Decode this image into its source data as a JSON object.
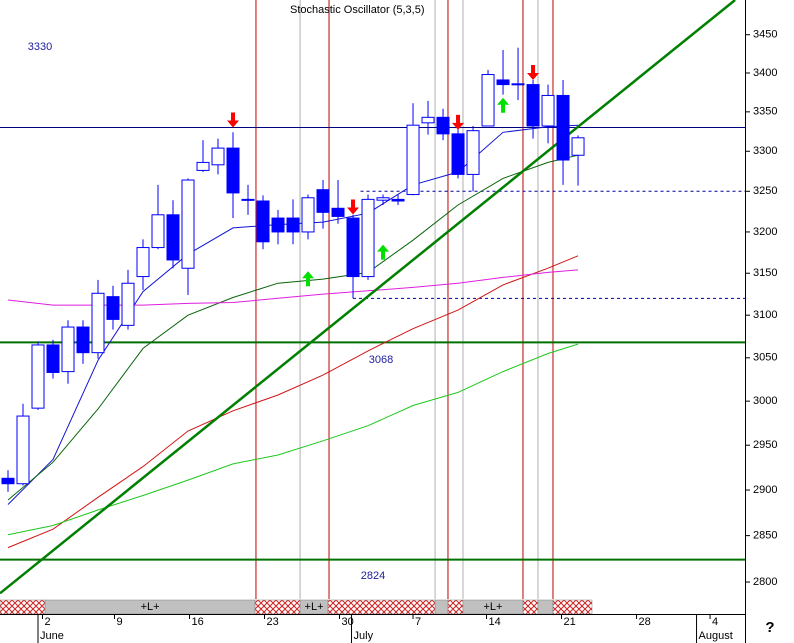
{
  "chart_data": {
    "type": "candlestick",
    "title": "Stochastic Oscillator (5,3,5)",
    "log_scale": true,
    "x": [
      0,
      1,
      2,
      3,
      4,
      5,
      6,
      7,
      8,
      9,
      10,
      11,
      12,
      13,
      14,
      15,
      16,
      17,
      18,
      19,
      20,
      21,
      22,
      23,
      24,
      25,
      26,
      27,
      28,
      29,
      30,
      31,
      32,
      33,
      34,
      35,
      36,
      37,
      38
    ],
    "open": [
      2913,
      2907,
      2992,
      3065,
      3034,
      3086,
      3056,
      3122,
      3088,
      3146,
      3181,
      3221,
      3156,
      3276,
      3283,
      3304,
      3240,
      3238,
      3217,
      3217,
      3200,
      3252,
      3229,
      3217,
      3146,
      3239,
      3240,
      3246,
      3336,
      3343,
      3322,
      3271,
      3332,
      3391,
      3386,
      3385,
      3332,
      3371,
      3295
    ],
    "high": [
      2922,
      2997,
      3069,
      3071,
      3094,
      3094,
      3142,
      3135,
      3154,
      3191,
      3258,
      3239,
      3266,
      3314,
      3316,
      3324,
      3258,
      3245,
      3227,
      3240,
      3246,
      3264,
      3264,
      3221,
      3246,
      3246,
      3246,
      3361,
      3364,
      3354,
      3340,
      3332,
      3404,
      3430,
      3433,
      3391,
      3385,
      3391,
      3320
    ],
    "low": [
      2898,
      2905,
      2990,
      3026,
      3020,
      3043,
      3049,
      3083,
      3083,
      3130,
      3179,
      3156,
      3124,
      3274,
      3271,
      3217,
      3221,
      3179,
      3185,
      3185,
      3191,
      3204,
      3210,
      3120,
      3142,
      3233,
      3233,
      3245,
      3321,
      3314,
      3266,
      3250,
      3332,
      3372,
      3365,
      3316,
      3310,
      3258,
      3257
    ],
    "close": [
      2907,
      2983,
      3065,
      3033,
      3086,
      3056,
      3126,
      3095,
      3138,
      3181,
      3221,
      3166,
      3264,
      3286,
      3304,
      3248,
      3239,
      3188,
      3200,
      3200,
      3242,
      3224,
      3219,
      3146,
      3240,
      3242,
      3238,
      3333,
      3343,
      3322,
      3271,
      3326,
      3398,
      3385,
      3385,
      3332,
      3371,
      3289,
      3317
    ],
    "up_color": "#ffffff",
    "down_color": "#0000ff",
    "candle_color": "#0000ff",
    "xlim": [
      -0.533,
      49.13
    ],
    "ylim": [
      2783,
      3496
    ],
    "yticks": [
      2800,
      2850,
      2900,
      2950,
      3000,
      3050,
      3100,
      3150,
      3200,
      3250,
      3300,
      3350,
      3400,
      3450
    ],
    "xticks": [
      {
        "value": 2.3,
        "label": "2"
      },
      {
        "value": 7.1,
        "label": "9"
      },
      {
        "value": 12.1,
        "label": "16"
      },
      {
        "value": 17.1,
        "label": "23"
      },
      {
        "value": 22.1,
        "label": "30"
      },
      {
        "value": 27.0,
        "label": "7"
      },
      {
        "value": 31.9,
        "label": "14"
      },
      {
        "value": 36.9,
        "label": "21"
      },
      {
        "value": 41.9,
        "label": "28"
      },
      {
        "value": 46.8,
        "label": "4"
      }
    ],
    "month_ticks": [
      {
        "value": 2.0,
        "label": "June"
      },
      {
        "value": 22.9,
        "label": "July"
      },
      {
        "value": 45.9,
        "label": "August"
      }
    ],
    "moving_averages": [
      {
        "color": "#1414d2",
        "x": [
          0,
          3,
          6,
          9,
          12,
          15,
          18,
          21,
          24,
          27,
          30,
          33,
          36,
          38
        ],
        "values": [
          2884,
          2934,
          3047,
          3128,
          3173,
          3205,
          3209,
          3212,
          3223,
          3258,
          3274,
          3324,
          3331,
          3333
        ]
      },
      {
        "color": "#0a640a",
        "x": [
          0,
          3,
          6,
          9,
          12,
          15,
          18,
          21,
          24,
          27,
          30,
          33,
          36,
          38
        ],
        "values": [
          2889,
          2931,
          2991,
          3061,
          3100,
          3121,
          3138,
          3143,
          3151,
          3190,
          3233,
          3266,
          3286,
          3295
        ]
      },
      {
        "color": "#d21414",
        "x": [
          0,
          3,
          6,
          9,
          12,
          15,
          18,
          21,
          24,
          27,
          30,
          33,
          36,
          38
        ],
        "values": [
          2837,
          2857,
          2892,
          2926,
          2966,
          2989,
          3007,
          3030,
          3058,
          3084,
          3106,
          3136,
          3156,
          3171
        ]
      },
      {
        "color": "#1ec81e",
        "x": [
          0,
          3,
          6,
          9,
          12,
          15,
          18,
          21,
          24,
          27,
          30,
          33,
          36,
          38
        ],
        "values": [
          2851,
          2861,
          2878,
          2894,
          2911,
          2929,
          2939,
          2955,
          2972,
          2995,
          3010,
          3034,
          3055,
          3066
        ]
      },
      {
        "color": "#e01ee0",
        "x": [
          0,
          3,
          6,
          9,
          12,
          15,
          18,
          21,
          24,
          27,
          30,
          33,
          36,
          38
        ],
        "values": [
          3118,
          3112,
          3112,
          3112,
          3114,
          3115,
          3120,
          3125,
          3129,
          3133,
          3138,
          3145,
          3151,
          3154
        ]
      }
    ],
    "levels": [
      {
        "value": 3330,
        "color": "#000080"
      },
      {
        "value": 3068,
        "color": "#007000"
      },
      {
        "value": 2824,
        "color": "#007000"
      }
    ],
    "dashed_levels": [
      {
        "value": 3250,
        "from": 23.5,
        "color": "#0000a0"
      },
      {
        "value": 3120,
        "from": 23.0,
        "color": "#0000a0"
      }
    ],
    "trendline": {
      "color": "#008000",
      "x": [
        -0.533,
        48.47
      ],
      "values": [
        2788,
        3496
      ]
    },
    "red_vlines": [
      16.53,
      21.4,
      29.33,
      34.33,
      36.33
    ],
    "gray_vlines": [
      19.47,
      28.47,
      30.33,
      35.33
    ],
    "signals": {
      "sell": {
        "color": "#ff0000",
        "x": [
          15,
          23,
          30,
          35
        ],
        "values": [
          3339,
          3230,
          3336,
          3400
        ]
      },
      "buy": {
        "color": "#00e000",
        "x": [
          20,
          25,
          33
        ],
        "values": [
          3144,
          3176,
          3359
        ]
      }
    },
    "band": [
      {
        "from": -0.533,
        "to": 2.47,
        "kind": "hatch"
      },
      {
        "from": 2.47,
        "to": 16.47,
        "kind": "plain",
        "label": "+L+"
      },
      {
        "from": 16.47,
        "to": 19.47,
        "kind": "hatch"
      },
      {
        "from": 19.47,
        "to": 21.33,
        "kind": "plain",
        "label": "+L+"
      },
      {
        "from": 21.33,
        "to": 28.47,
        "kind": "hatch"
      },
      {
        "from": 28.47,
        "to": 29.33,
        "kind": "plain"
      },
      {
        "from": 29.33,
        "to": 30.33,
        "kind": "hatch"
      },
      {
        "from": 30.33,
        "to": 34.33,
        "kind": "plain",
        "label": "+L+"
      },
      {
        "from": 34.33,
        "to": 35.33,
        "kind": "hatch"
      },
      {
        "from": 35.33,
        "to": 36.33,
        "kind": "plain"
      },
      {
        "from": 36.33,
        "to": 38.93,
        "kind": "hatch"
      }
    ],
    "help": "?"
  }
}
